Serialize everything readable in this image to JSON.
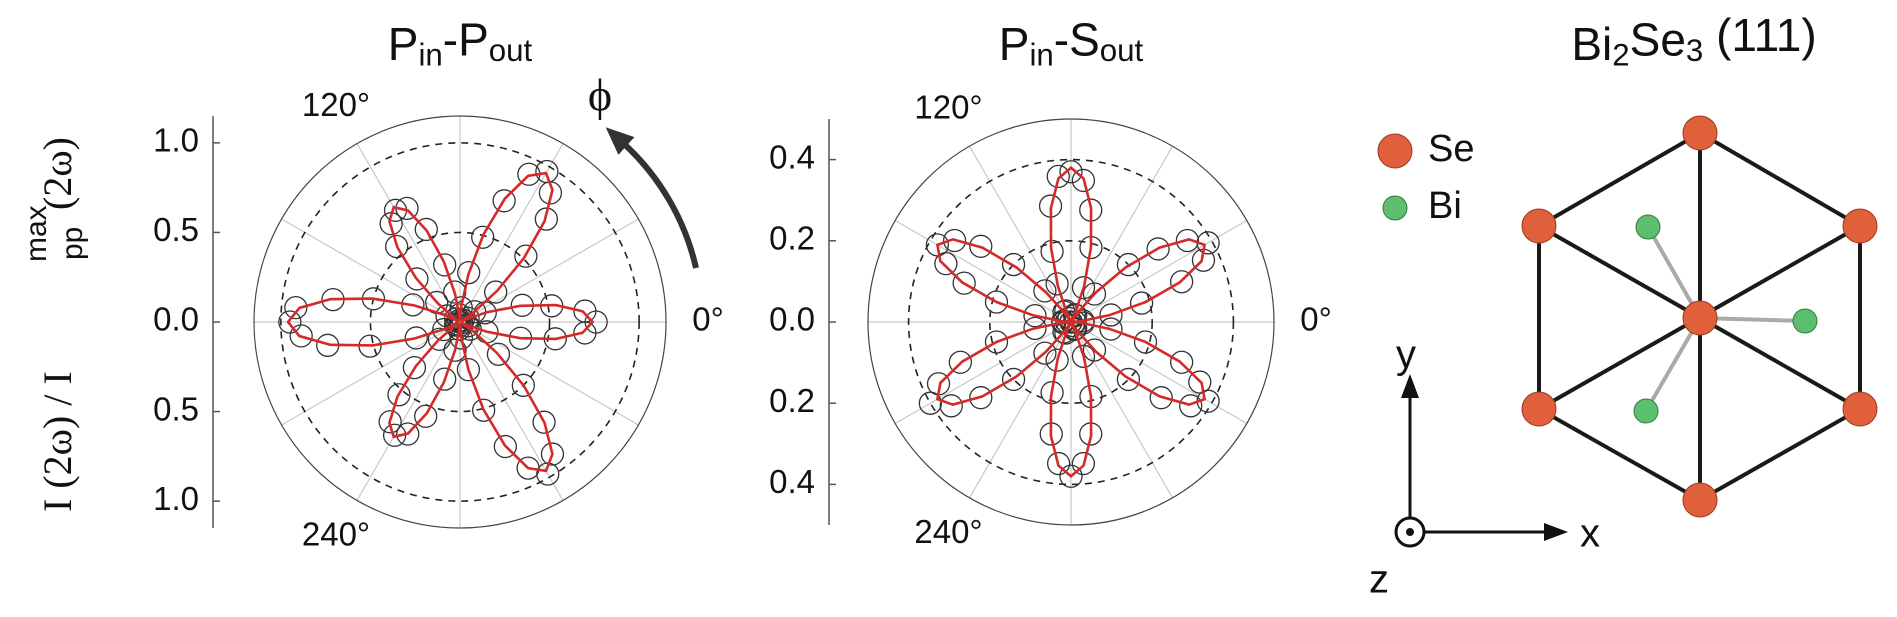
{
  "chart_data": [
    {
      "type": "polar",
      "title": [
        "P",
        "in",
        "-P",
        "out"
      ],
      "title_subscript": [
        false,
        true,
        false,
        true
      ],
      "ylabel": [
        "I (2ω) / I",
        "pp",
        "max",
        "(2ω)"
      ],
      "annotation": "ϕ",
      "ylim": [
        -1.15,
        1.15
      ],
      "yticks": [
        {
          "value": 1,
          "label": "1.0"
        },
        0.5,
        {
          "value": 0,
          "label": "0.0"
        },
        {
          "value": -0.5,
          "label": "0.5"
        },
        {
          "value": -1,
          "label": "1.0"
        }
      ],
      "rgrid": [
        0.5,
        1
      ],
      "thetagrid": [
        0,
        30,
        60,
        90,
        120,
        150,
        180,
        210,
        240,
        270,
        300,
        330
      ],
      "thetaticks": [
        {
          "value": 0,
          "label": "0°"
        },
        {
          "value": 120,
          "label": "120°"
        },
        {
          "value": 240,
          "label": "240°"
        }
      ],
      "x": [
        0,
        5,
        10,
        15,
        20,
        25,
        30,
        35,
        40,
        45,
        50,
        55,
        60,
        65,
        70,
        75,
        80,
        85,
        90,
        95,
        100,
        105,
        110,
        115,
        120,
        125,
        130,
        135,
        140,
        145,
        150,
        155,
        160,
        165,
        170,
        175,
        180,
        185,
        190,
        195,
        200,
        205,
        210,
        215,
        220,
        225,
        230,
        235,
        240,
        245,
        250,
        255,
        260,
        265,
        270,
        275,
        280,
        285,
        290,
        295,
        300,
        305,
        310,
        315,
        320,
        325,
        330,
        335,
        340,
        345,
        350,
        355
      ],
      "series": [
        {
          "style": "markers",
          "color": "#333333",
          "values": [
            0.76,
            0.7,
            0.52,
            0.36,
            0.15,
            0.05,
            0.02,
            0.1,
            0.26,
            0.52,
            0.75,
            0.88,
            0.97,
            0.91,
            0.72,
            0.49,
            0.28,
            0.08,
            0.01,
            0.04,
            0.17,
            0.33,
            0.55,
            0.7,
            0.72,
            0.67,
            0.55,
            0.34,
            0.17,
            0.03,
            0.01,
            0.08,
            0.28,
            0.5,
            0.72,
            0.92,
            0.95,
            0.89,
            0.75,
            0.52,
            0.26,
            0.1,
            0.02,
            0.03,
            0.15,
            0.36,
            0.53,
            0.68,
            0.73,
            0.69,
            0.56,
            0.33,
            0.16,
            0.04,
            0.02,
            0.09,
            0.27,
            0.51,
            0.74,
            0.9,
            0.98,
            0.9,
            0.73,
            0.5,
            0.28,
            0.07,
            0.01,
            0.05,
            0.16,
            0.35,
            0.54,
            0.7
          ]
        },
        {
          "style": "line",
          "color": "#d42a2a",
          "values": [
            0.74,
            0.687,
            0.543,
            0.349,
            0.16,
            0.032,
            0.004,
            0.089,
            0.27,
            0.505,
            0.734,
            0.9,
            0.96,
            0.9,
            0.734,
            0.505,
            0.27,
            0.089,
            0.004,
            0.032,
            0.16,
            0.349,
            0.543,
            0.687,
            0.74,
            0.687,
            0.543,
            0.349,
            0.16,
            0.032,
            0.004,
            0.089,
            0.27,
            0.505,
            0.734,
            0.9,
            0.96,
            0.9,
            0.734,
            0.505,
            0.27,
            0.089,
            0.004,
            0.032,
            0.16,
            0.349,
            0.543,
            0.687,
            0.74,
            0.687,
            0.543,
            0.349,
            0.16,
            0.032,
            0.004,
            0.089,
            0.27,
            0.505,
            0.734,
            0.9,
            0.96,
            0.9,
            0.734,
            0.505,
            0.27,
            0.089,
            0.004,
            0.032,
            0.16,
            0.349,
            0.543,
            0.687
          ]
        }
      ]
    },
    {
      "type": "polar",
      "title": [
        "P",
        "in",
        "-S",
        "out"
      ],
      "title_subscript": [
        false,
        true,
        false,
        true
      ],
      "ylim": [
        -0.5,
        0.5
      ],
      "yticks": [
        0.4,
        0.2,
        {
          "value": 0,
          "label": "0.0"
        },
        {
          "value": -0.2,
          "label": "0.2"
        },
        {
          "value": -0.4,
          "label": "0.4"
        }
      ],
      "rgrid": [
        0.2,
        0.4
      ],
      "thetagrid": [
        0,
        30,
        60,
        90,
        120,
        150,
        180,
        210,
        240,
        270,
        300,
        330
      ],
      "thetaticks": [
        {
          "value": 0,
          "label": "0°"
        },
        {
          "value": 120,
          "label": "120°"
        },
        {
          "value": 240,
          "label": "240°"
        }
      ],
      "x": [
        0,
        5,
        10,
        15,
        20,
        25,
        30,
        35,
        40,
        45,
        50,
        55,
        60,
        65,
        70,
        75,
        80,
        85,
        90,
        95,
        100,
        105,
        110,
        115,
        120,
        125,
        130,
        135,
        140,
        145,
        150,
        155,
        160,
        165,
        170,
        175,
        180,
        185,
        190,
        195,
        200,
        205,
        210,
        215,
        220,
        225,
        230,
        235,
        240,
        245,
        250,
        255,
        260,
        265,
        270,
        275,
        280,
        285,
        290,
        295,
        300,
        305,
        310,
        315,
        320,
        325,
        330,
        335,
        340,
        345,
        350,
        355
      ],
      "series": [
        {
          "style": "markers",
          "color": "#333333",
          "values": [
            0.01,
            0.03,
            0.1,
            0.18,
            0.29,
            0.36,
            0.39,
            0.35,
            0.28,
            0.2,
            0.09,
            0.02,
            0.0,
            0.02,
            0.09,
            0.19,
            0.28,
            0.35,
            0.37,
            0.36,
            0.29,
            0.18,
            0.1,
            0.03,
            0.01,
            0.03,
            0.1,
            0.2,
            0.29,
            0.35,
            0.38,
            0.34,
            0.28,
            0.19,
            0.09,
            0.02,
            0.01,
            0.02,
            0.09,
            0.19,
            0.29,
            0.36,
            0.4,
            0.36,
            0.29,
            0.2,
            0.1,
            0.03,
            0.0,
            0.03,
            0.1,
            0.18,
            0.28,
            0.35,
            0.38,
            0.35,
            0.28,
            0.19,
            0.09,
            0.02,
            0.01,
            0.02,
            0.09,
            0.2,
            0.29,
            0.36,
            0.39,
            0.35,
            0.29,
            0.19,
            0.1,
            0.03
          ]
        },
        {
          "style": "line",
          "color": "#d42a2a",
          "values": [
            0,
            0.025,
            0.095,
            0.19,
            0.285,
            0.355,
            0.38,
            0.355,
            0.285,
            0.19,
            0.095,
            0.025,
            0,
            0.025,
            0.095,
            0.19,
            0.285,
            0.355,
            0.38,
            0.355,
            0.285,
            0.19,
            0.095,
            0.025,
            0,
            0.025,
            0.095,
            0.19,
            0.285,
            0.355,
            0.38,
            0.355,
            0.285,
            0.19,
            0.095,
            0.025,
            0,
            0.025,
            0.095,
            0.19,
            0.285,
            0.355,
            0.38,
            0.355,
            0.285,
            0.19,
            0.095,
            0.025,
            0,
            0.025,
            0.095,
            0.19,
            0.285,
            0.355,
            0.38,
            0.355,
            0.285,
            0.19,
            0.095,
            0.025,
            0,
            0.025,
            0.095,
            0.19,
            0.285,
            0.355,
            0.38,
            0.355,
            0.285,
            0.19,
            0.095,
            0.025
          ]
        }
      ]
    }
  ],
  "diagram": {
    "title": [
      "Bi",
      "2",
      "Se",
      "3",
      " (111)"
    ],
    "title_subscript": [
      false,
      true,
      false,
      true,
      false
    ],
    "legend": [
      {
        "label": "Se",
        "color": "#e0603c"
      },
      {
        "label": "Bi",
        "color": "#5cbf6e"
      }
    ],
    "axes": {
      "x": "x",
      "y": "y",
      "z": "z"
    }
  }
}
